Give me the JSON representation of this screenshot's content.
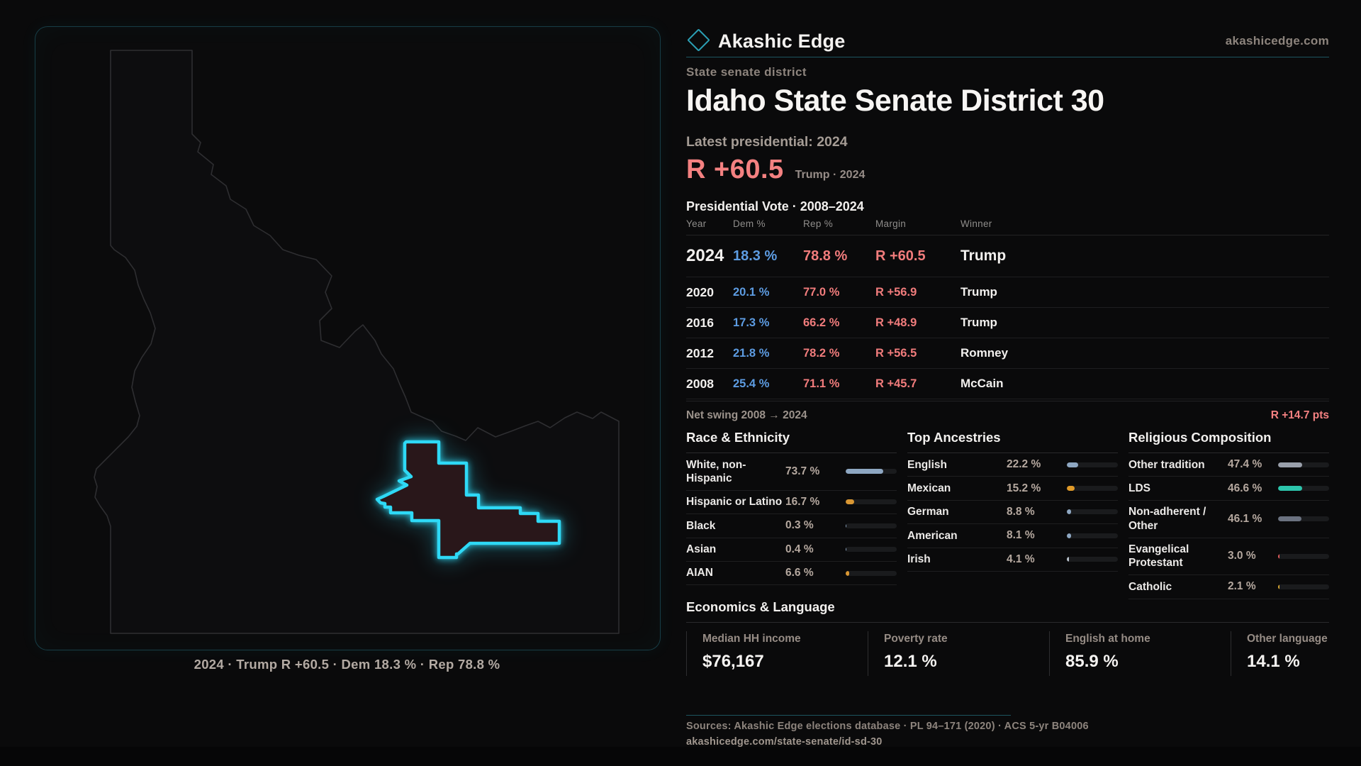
{
  "brand": {
    "name": "Akashic Edge",
    "domain": "akashicedge.com"
  },
  "eyebrow": "State senate district",
  "title": "Idaho State Senate District 30",
  "latest_label": "Latest presidential: 2024",
  "headline": {
    "margin": "R +60.5",
    "context": "Trump · 2024"
  },
  "table": {
    "title": "Presidential Vote · 2008–2024",
    "columns": {
      "year": "Year",
      "dem": "Dem %",
      "rep": "Rep %",
      "margin": "Margin",
      "winner": "Winner"
    },
    "rows": [
      {
        "year": "2024",
        "dem": "18.3 %",
        "rep": "78.8 %",
        "margin": "R +60.5",
        "winner": "Trump"
      },
      {
        "year": "2020",
        "dem": "20.1 %",
        "rep": "77.0 %",
        "margin": "R +56.9",
        "winner": "Trump"
      },
      {
        "year": "2016",
        "dem": "17.3 %",
        "rep": "66.2 %",
        "margin": "R +48.9",
        "winner": "Trump"
      },
      {
        "year": "2012",
        "dem": "21.8 %",
        "rep": "78.2 %",
        "margin": "R +56.5",
        "winner": "Romney"
      },
      {
        "year": "2008",
        "dem": "25.4 %",
        "rep": "71.1 %",
        "margin": "R +45.7",
        "winner": "McCain"
      }
    ],
    "net_swing_label": "Net swing 2008 → 2024",
    "net_swing_value": "R +14.7 pts"
  },
  "race": {
    "title": "Race & Ethnicity",
    "rows": [
      {
        "label": "White, non-Hispanic",
        "value": "73.7 %",
        "pct": 73.7,
        "color": "#8ea7c2"
      },
      {
        "label": "Hispanic or Latino",
        "value": "16.7 %",
        "pct": 16.7,
        "color": "#d99733"
      },
      {
        "label": "Black",
        "value": "0.3 %",
        "pct": 0.3,
        "color": "#8ea7c2"
      },
      {
        "label": "Asian",
        "value": "0.4 %",
        "pct": 0.4,
        "color": "#8ea7c2"
      },
      {
        "label": "AIAN",
        "value": "6.6 %",
        "pct": 6.6,
        "color": "#d99733"
      }
    ]
  },
  "ancestries": {
    "title": "Top Ancestries",
    "rows": [
      {
        "label": "English",
        "value": "22.2 %",
        "pct": 22.2,
        "color": "#8ea7c2"
      },
      {
        "label": "Mexican",
        "value": "15.2 %",
        "pct": 15.2,
        "color": "#e09a28"
      },
      {
        "label": "German",
        "value": "8.8 %",
        "pct": 8.8,
        "color": "#8ea7c2"
      },
      {
        "label": "American",
        "value": "8.1 %",
        "pct": 8.1,
        "color": "#8ea7c2"
      },
      {
        "label": "Irish",
        "value": "4.1 %",
        "pct": 4.1,
        "color": "#b9c2cc"
      }
    ]
  },
  "religion": {
    "title": "Religious Composition",
    "rows": [
      {
        "label": "Other tradition",
        "value": "47.4 %",
        "pct": 47.4,
        "color": "#9aa0ab"
      },
      {
        "label": "LDS",
        "value": "46.6 %",
        "pct": 46.6,
        "color": "#2cc5ac"
      },
      {
        "label": "Non-adherent / Other",
        "value": "46.1 %",
        "pct": 46.1,
        "color": "#6b7280"
      },
      {
        "label": "Evangelical Protestant",
        "value": "3.0 %",
        "pct": 3.0,
        "color": "#e35d5d"
      },
      {
        "label": "Catholic",
        "value": "2.1 %",
        "pct": 2.1,
        "color": "#d9a832"
      }
    ]
  },
  "economics": {
    "title": "Economics & Language",
    "stats": [
      {
        "label": "Median HH income",
        "value": "$76,167"
      },
      {
        "label": "Poverty rate",
        "value": "12.1 %"
      },
      {
        "label": "English at home",
        "value": "85.9 %"
      },
      {
        "label": "Other language",
        "value": "14.1 %"
      }
    ]
  },
  "map": {
    "caption": "2024 · Trump R +60.5 · Dem 18.3 % · Rep 78.8 %"
  },
  "footer": {
    "sources": "Sources: Akashic Edge elections database · PL 94–171 (2020) · ACS 5-yr B04006",
    "permalink": "akashicedge.com/state-senate/id-sd-30"
  },
  "colors": {
    "background": "#0a0a0b",
    "accent_cyan": "#2ed9f6",
    "dem_blue": "#5d9ce2",
    "rep_red": "#f17c7c",
    "teal_rule": "#1d5560",
    "district_fill": "#29171a"
  },
  "chart_data": [
    {
      "type": "table",
      "title": "Presidential Vote · 2008–2024",
      "columns": [
        "Year",
        "Dem %",
        "Rep %",
        "Margin",
        "Winner"
      ],
      "rows": [
        [
          "2024",
          18.3,
          78.8,
          "R +60.5",
          "Trump"
        ],
        [
          "2020",
          20.1,
          77.0,
          "R +56.9",
          "Trump"
        ],
        [
          "2016",
          17.3,
          66.2,
          "R +48.9",
          "Trump"
        ],
        [
          "2012",
          21.8,
          78.2,
          "R +56.5",
          "Romney"
        ],
        [
          "2008",
          25.4,
          71.1,
          "R +45.7",
          "McCain"
        ]
      ],
      "net_swing_2008_to_2024": "R +14.7 pts"
    },
    {
      "type": "bar",
      "title": "Race & Ethnicity",
      "categories": [
        "White, non-Hispanic",
        "Hispanic or Latino",
        "Black",
        "Asian",
        "AIAN"
      ],
      "values": [
        73.7,
        16.7,
        0.3,
        0.4,
        6.6
      ],
      "unit": "%",
      "xlim": [
        0,
        100
      ]
    },
    {
      "type": "bar",
      "title": "Top Ancestries",
      "categories": [
        "English",
        "Mexican",
        "German",
        "American",
        "Irish"
      ],
      "values": [
        22.2,
        15.2,
        8.8,
        8.1,
        4.1
      ],
      "unit": "%",
      "xlim": [
        0,
        100
      ]
    },
    {
      "type": "bar",
      "title": "Religious Composition",
      "categories": [
        "Other tradition",
        "LDS",
        "Non-adherent / Other",
        "Evangelical Protestant",
        "Catholic"
      ],
      "values": [
        47.4,
        46.6,
        46.1,
        3.0,
        2.1
      ],
      "unit": "%",
      "xlim": [
        0,
        100
      ]
    },
    {
      "type": "table",
      "title": "Economics & Language",
      "columns": [
        "Median HH income",
        "Poverty rate",
        "English at home",
        "Other language"
      ],
      "rows": [
        [
          "$76,167",
          "12.1 %",
          "85.9 %",
          "14.1 %"
        ]
      ]
    }
  ]
}
